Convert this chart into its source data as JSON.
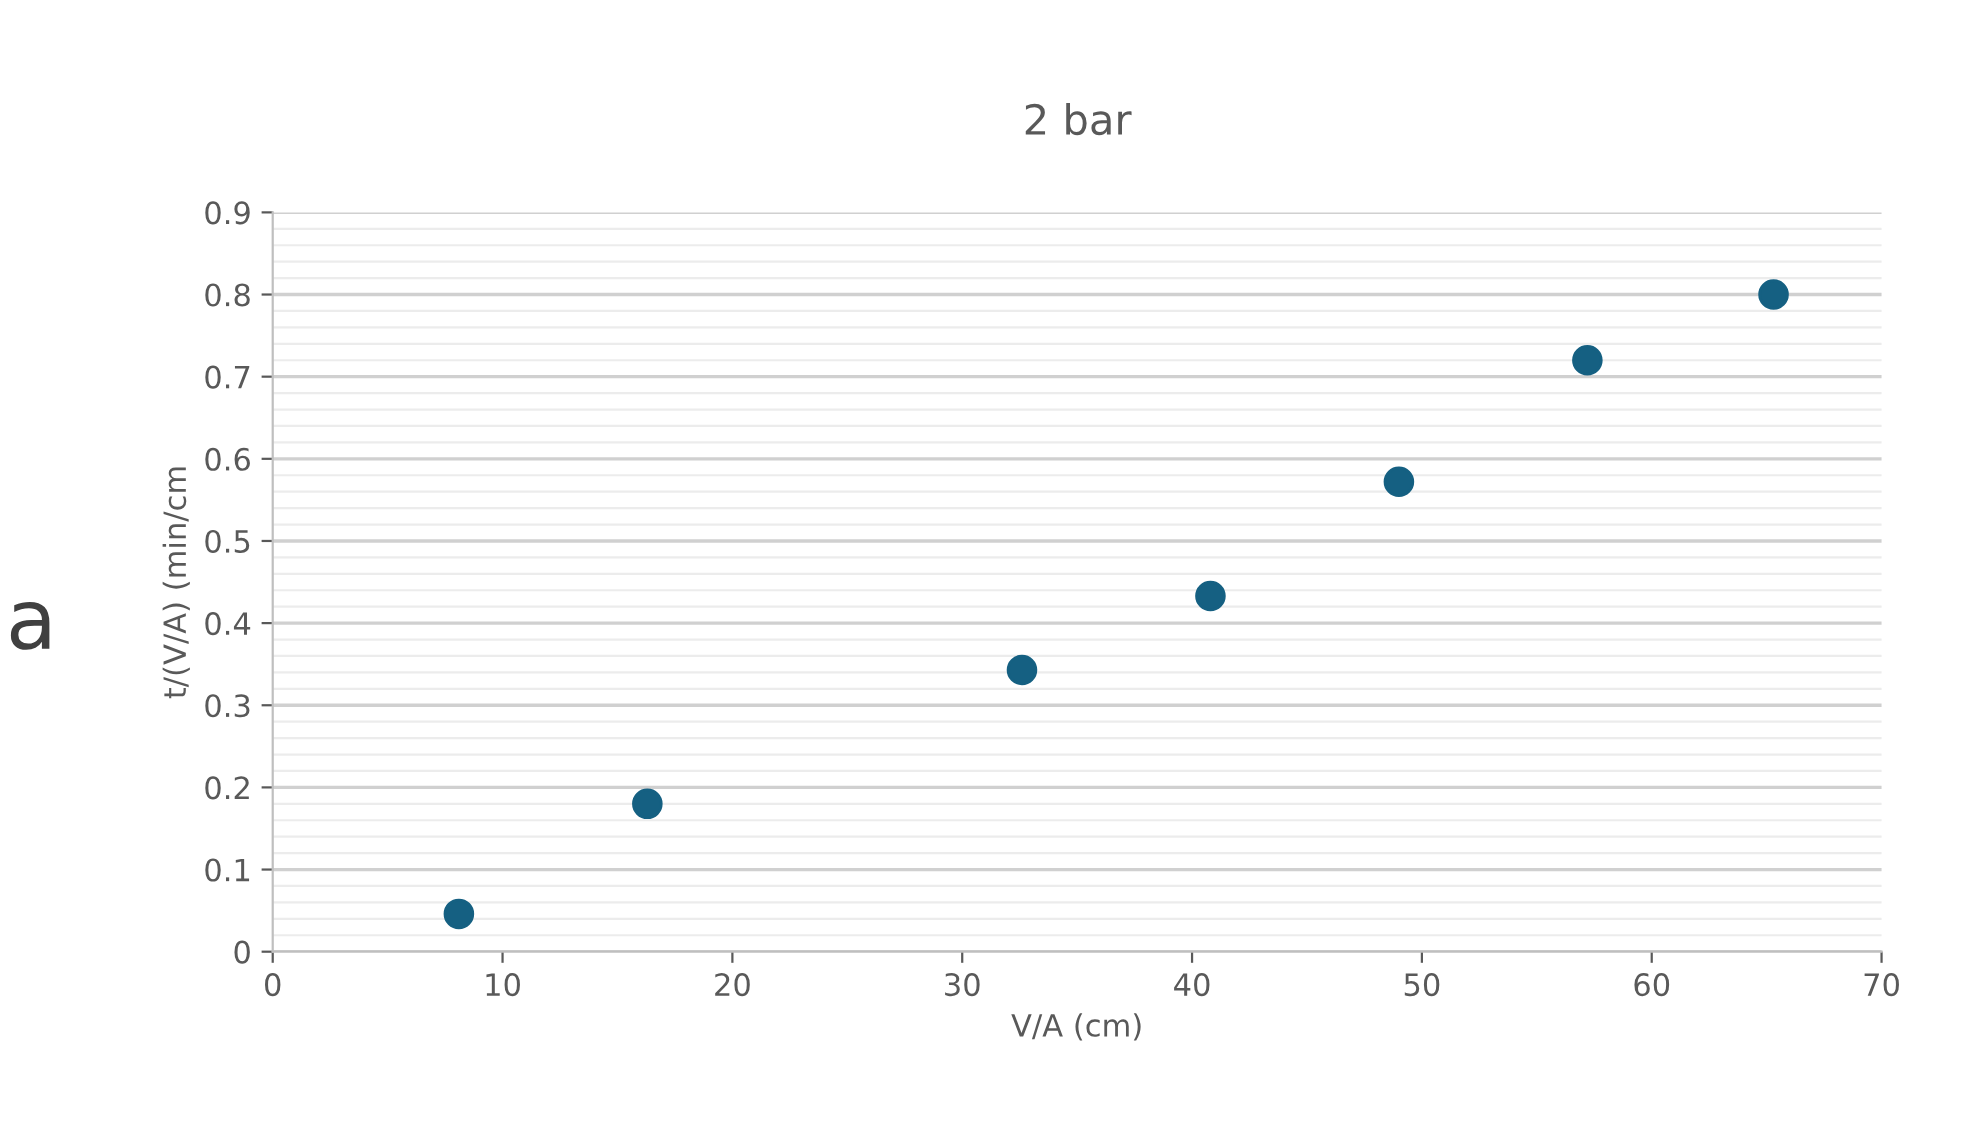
{
  "chart_data": {
    "type": "scatter",
    "title": "2 bar",
    "xlabel": "V/A (cm)",
    "ylabel": "t/(V/A) (min/cm",
    "annotations": [
      "a"
    ],
    "x": [
      8.1,
      16.3,
      32.6,
      40.8,
      49.0,
      57.2,
      65.3
    ],
    "series": [
      {
        "color": "#156082",
        "values": [
          0.046,
          0.18,
          0.343,
          0.433,
          0.572,
          0.72,
          0.8
        ]
      }
    ],
    "xlim": [
      0,
      70
    ],
    "xticks": [
      0,
      10,
      20,
      30,
      40,
      50,
      60,
      70
    ],
    "ylim": [
      0,
      0.9
    ],
    "yticks": [
      0,
      0.1,
      0.2,
      0.3,
      0.4,
      0.5,
      0.6,
      0.7,
      0.8,
      0.9
    ],
    "grid": "y",
    "marker": "circle"
  }
}
